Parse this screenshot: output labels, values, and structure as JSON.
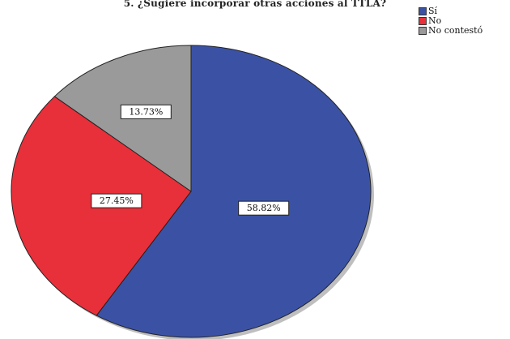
{
  "chart_data": {
    "type": "pie",
    "title": "5. ¿Sugiere incorporar otras acciones al TTLA?",
    "slices": [
      {
        "name": "Sí",
        "value": 58.82,
        "label": "58.82%",
        "color": "#3b52a4"
      },
      {
        "name": "No",
        "value": 27.45,
        "label": "27.45%",
        "color": "#e8303a"
      },
      {
        "name": "No contestó",
        "value": 13.73,
        "label": "13.73%",
        "color": "#9a9a9a"
      }
    ],
    "legend_position": "top-right"
  }
}
